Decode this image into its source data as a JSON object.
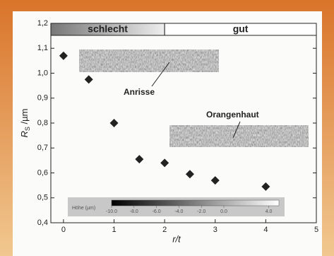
{
  "chart_data": {
    "type": "scatter",
    "x": [
      0,
      0.5,
      1,
      1.5,
      2,
      2.5,
      3,
      4
    ],
    "values": [
      1.07,
      0.975,
      0.8,
      0.655,
      0.64,
      0.595,
      0.57,
      0.545
    ],
    "color": "#222222",
    "xlim": [
      -0.25,
      5
    ],
    "xticks": [
      0,
      1,
      2,
      3,
      4,
      5
    ],
    "ylim": [
      0.4,
      1.2
    ],
    "yticks": [
      {
        "value": 0.4,
        "label": "0,4"
      },
      {
        "value": 0.5,
        "label": "0,5"
      },
      {
        "value": 0.6,
        "label": "0,6"
      },
      {
        "value": 0.7,
        "label": "0,7"
      },
      {
        "value": 0.8,
        "label": "0,8"
      },
      {
        "value": 0.9,
        "label": "0,9"
      },
      {
        "value": 1.0,
        "label": "1,0"
      },
      {
        "value": 1.1,
        "label": "1,1"
      },
      {
        "value": 1.2,
        "label": "1,2"
      }
    ],
    "xlabel": "r/t",
    "ylabel": "R",
    "ylabel_sub": "S",
    "ylabel_unit": " /µm",
    "bands": [
      {
        "label": "schlecht",
        "range": [
          -0.25,
          2
        ]
      },
      {
        "label": "gut",
        "range": [
          2,
          5
        ]
      }
    ],
    "annotations": [
      "Anrisse",
      "Orangenhaut"
    ],
    "colorbar": {
      "label": "Höhe (µm)",
      "ticks": [
        {
          "value": -10,
          "label": "-10.0"
        },
        {
          "value": -8,
          "label": "-8.0"
        },
        {
          "value": -6,
          "label": "-6.0"
        },
        {
          "value": -4,
          "label": "-4.0"
        },
        {
          "value": -2,
          "label": "-2.0"
        },
        {
          "value": 0,
          "label": "0.0"
        },
        {
          "value": 4,
          "label": "4.0"
        }
      ]
    }
  }
}
